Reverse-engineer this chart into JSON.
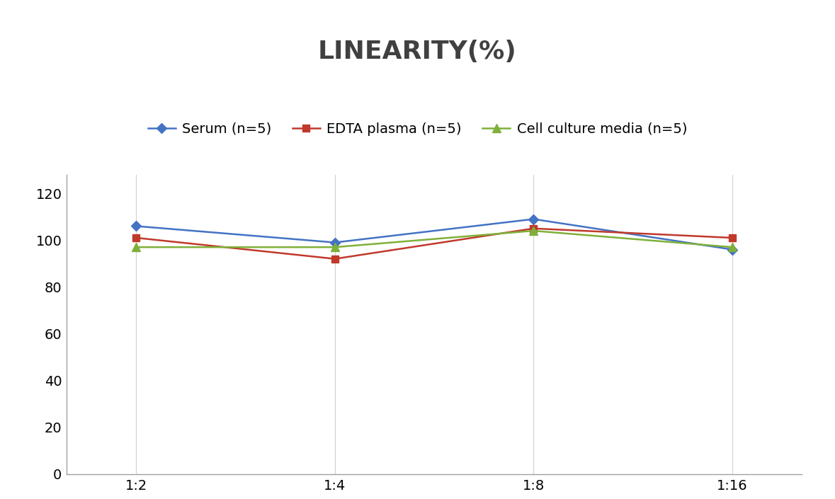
{
  "title": "LINEARITY(%)",
  "title_fontsize": 26,
  "title_fontweight": "bold",
  "x_labels": [
    "1:2",
    "1:4",
    "1:8",
    "1:16"
  ],
  "x_positions": [
    0,
    1,
    2,
    3
  ],
  "series": [
    {
      "name": "Serum (n=5)",
      "values": [
        106,
        99,
        109,
        96
      ],
      "color": "#4472C4",
      "marker": "D",
      "marker_size": 7,
      "linewidth": 1.8
    },
    {
      "name": "EDTA plasma (n=5)",
      "values": [
        101,
        92,
        105,
        101
      ],
      "color": "#C0392B",
      "marker": "s",
      "marker_size": 7,
      "linewidth": 1.8
    },
    {
      "name": "Cell culture media (n=5)",
      "values": [
        97,
        97,
        104,
        97
      ],
      "color": "#7FB03A",
      "marker": "^",
      "marker_size": 8,
      "linewidth": 1.8
    }
  ],
  "ylim": [
    0,
    128
  ],
  "yticks": [
    0,
    20,
    40,
    60,
    80,
    100,
    120
  ],
  "grid_color": "#D0D0D0",
  "grid_linewidth": 0.8,
  "background_color": "#FFFFFF",
  "legend_fontsize": 14,
  "tick_fontsize": 14,
  "spine_color": "#A0A0A0"
}
